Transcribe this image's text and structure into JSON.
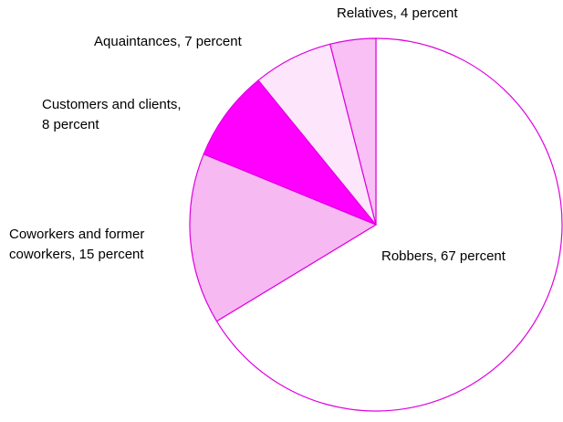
{
  "chart_data": {
    "type": "pie",
    "categories": [
      "Robbers",
      "Coworkers and former coworkers",
      "Customers and clients",
      "Aquaintances",
      "Relatives"
    ],
    "values": [
      67,
      15,
      8,
      7,
      4
    ],
    "value_labels": [
      [
        "Robbers, 67 percent"
      ],
      [
        "Coworkers and former",
        "coworkers, 15 percent"
      ],
      [
        "Customers and clients,",
        "8 percent"
      ],
      [
        "Aquaintances, 7 percent"
      ],
      [
        "Relatives, 4 percent"
      ]
    ],
    "colors": [
      "#ffffff",
      "#f6b9f2",
      "#ff00ff",
      "#fde6fc",
      "#f8c0f4"
    ],
    "edge_color": "#e000e0"
  }
}
